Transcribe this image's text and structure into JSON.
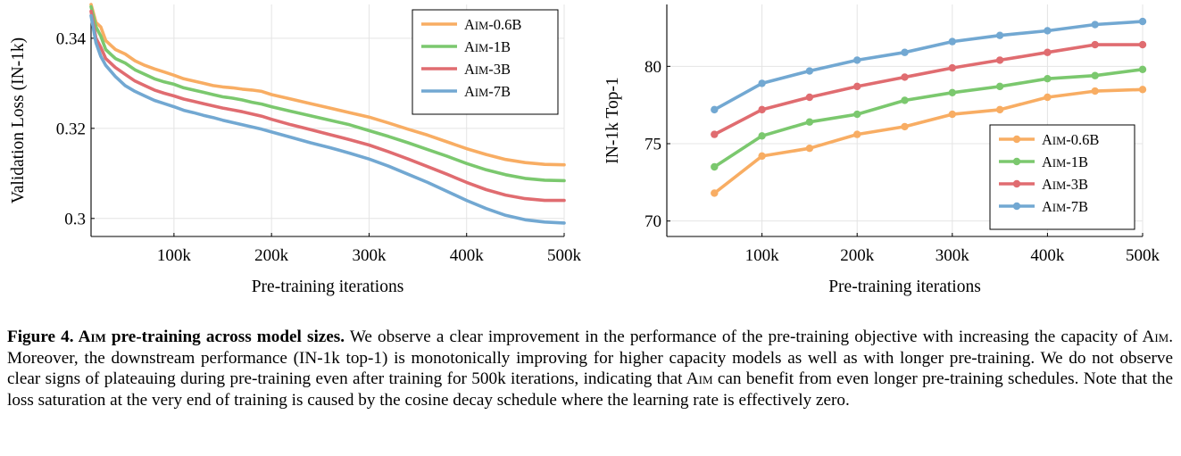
{
  "chart_data": [
    {
      "type": "line",
      "xlabel": "Pre-training iterations",
      "ylabel": "Validation Loss (IN-1k)",
      "xlim": [
        15000,
        500000
      ],
      "ylim": [
        0.296,
        0.3475
      ],
      "x_ticks": [
        {
          "value": 100000,
          "label": "100k"
        },
        {
          "value": 200000,
          "label": "200k"
        },
        {
          "value": 300000,
          "label": "300k"
        },
        {
          "value": 400000,
          "label": "400k"
        },
        {
          "value": 500000,
          "label": "500k"
        }
      ],
      "y_ticks": [
        {
          "value": 0.3,
          "label": "0.3"
        },
        {
          "value": 0.32,
          "label": "0.32"
        },
        {
          "value": 0.34,
          "label": "0.34"
        }
      ],
      "grid": true,
      "legend_position": "top-right",
      "x": [
        15000,
        20000,
        25000,
        30000,
        40000,
        50000,
        60000,
        70000,
        80000,
        90000,
        100000,
        110000,
        120000,
        130000,
        140000,
        150000,
        160000,
        170000,
        180000,
        190000,
        200000,
        220000,
        240000,
        260000,
        280000,
        300000,
        320000,
        340000,
        360000,
        380000,
        400000,
        420000,
        440000,
        460000,
        480000,
        500000
      ],
      "series": [
        {
          "name": "AIM-0.6B",
          "color": "#F8AD63",
          "values": [
            0.3475,
            0.3435,
            0.3425,
            0.3395,
            0.3375,
            0.3365,
            0.335,
            0.334,
            0.3332,
            0.3325,
            0.3318,
            0.331,
            0.3305,
            0.33,
            0.3295,
            0.3292,
            0.329,
            0.3287,
            0.3285,
            0.3282,
            0.3275,
            0.3265,
            0.3255,
            0.3245,
            0.3235,
            0.3225,
            0.3212,
            0.3198,
            0.3185,
            0.317,
            0.3155,
            0.3142,
            0.3131,
            0.3124,
            0.312,
            0.3119
          ]
        },
        {
          "name": "AIM-1B",
          "color": "#7BC86E",
          "values": [
            0.347,
            0.3425,
            0.3405,
            0.3375,
            0.3355,
            0.3345,
            0.333,
            0.332,
            0.331,
            0.3303,
            0.3298,
            0.329,
            0.3285,
            0.328,
            0.3275,
            0.327,
            0.3267,
            0.3263,
            0.3258,
            0.3254,
            0.3248,
            0.3238,
            0.3228,
            0.3218,
            0.3208,
            0.3195,
            0.3182,
            0.3168,
            0.3153,
            0.3138,
            0.3122,
            0.3108,
            0.3097,
            0.3089,
            0.3085,
            0.3084
          ]
        },
        {
          "name": "AIM-3B",
          "color": "#E06C70",
          "values": [
            0.346,
            0.34,
            0.338,
            0.3355,
            0.3335,
            0.332,
            0.3305,
            0.3295,
            0.3285,
            0.3278,
            0.3272,
            0.3265,
            0.326,
            0.3255,
            0.325,
            0.3245,
            0.3241,
            0.3237,
            0.3232,
            0.3227,
            0.322,
            0.3208,
            0.3197,
            0.3186,
            0.3175,
            0.3163,
            0.3148,
            0.3132,
            0.3115,
            0.3098,
            0.308,
            0.3064,
            0.3052,
            0.3044,
            0.304,
            0.304
          ]
        },
        {
          "name": "AIM-7B",
          "color": "#72A8D2",
          "values": [
            0.345,
            0.339,
            0.336,
            0.334,
            0.3315,
            0.3295,
            0.3282,
            0.3272,
            0.3262,
            0.3255,
            0.3248,
            0.324,
            0.3235,
            0.3229,
            0.3224,
            0.3218,
            0.3213,
            0.3208,
            0.3203,
            0.3198,
            0.3192,
            0.318,
            0.3168,
            0.3157,
            0.3145,
            0.3132,
            0.3116,
            0.3098,
            0.308,
            0.306,
            0.304,
            0.3022,
            0.3007,
            0.2997,
            0.2992,
            0.299
          ]
        }
      ]
    },
    {
      "type": "line",
      "xlabel": "Pre-training iterations",
      "ylabel": "IN-1k Top-1",
      "xlim": [
        0,
        500000
      ],
      "ylim": [
        69,
        84
      ],
      "x_ticks": [
        {
          "value": 100000,
          "label": "100k"
        },
        {
          "value": 200000,
          "label": "200k"
        },
        {
          "value": 300000,
          "label": "300k"
        },
        {
          "value": 400000,
          "label": "400k"
        },
        {
          "value": 500000,
          "label": "500k"
        }
      ],
      "y_ticks": [
        {
          "value": 70,
          "label": "70"
        },
        {
          "value": 75,
          "label": "75"
        },
        {
          "value": 80,
          "label": "80"
        }
      ],
      "grid": true,
      "legend_position": "bottom-right",
      "x": [
        50000,
        100000,
        150000,
        200000,
        250000,
        300000,
        350000,
        400000,
        450000,
        500000
      ],
      "series": [
        {
          "name": "AIM-0.6B",
          "color": "#F8AD63",
          "values": [
            71.8,
            74.2,
            74.7,
            75.6,
            76.1,
            76.9,
            77.2,
            78.0,
            78.4,
            78.5
          ]
        },
        {
          "name": "AIM-1B",
          "color": "#7BC86E",
          "values": [
            73.5,
            75.5,
            76.4,
            76.9,
            77.8,
            78.3,
            78.7,
            79.2,
            79.4,
            79.8
          ]
        },
        {
          "name": "AIM-3B",
          "color": "#E06C70",
          "values": [
            75.6,
            77.2,
            78.0,
            78.7,
            79.3,
            79.9,
            80.4,
            80.9,
            81.4,
            81.4
          ]
        },
        {
          "name": "AIM-7B",
          "color": "#72A8D2",
          "values": [
            77.2,
            78.9,
            79.7,
            80.4,
            80.9,
            81.6,
            82.0,
            82.3,
            82.7,
            82.9
          ]
        }
      ]
    }
  ],
  "legend_labels": [
    {
      "prefix": "A",
      "smallcaps": "im",
      "suffix": "-0.6B"
    },
    {
      "prefix": "A",
      "smallcaps": "im",
      "suffix": "-1B"
    },
    {
      "prefix": "A",
      "smallcaps": "im",
      "suffix": "-3B"
    },
    {
      "prefix": "A",
      "smallcaps": "im",
      "suffix": "-7B"
    }
  ],
  "caption": {
    "label": "Figure 4.",
    "title_prefix": "A",
    "title_smallcaps": "im",
    "title_suffix": " pre-training across model sizes.",
    "text_1": " We observe a clear improvement in the performance of the pre-training objective with increasing the capacity of ",
    "text_2": ". Moreover, the downstream performance (IN-1k top-1) is monotonically improving for higher capacity models as well as with longer pre-training. We do not observe clear signs of plateauing during pre-training even after training for 500k iterations, indicating that ",
    "text_3": " can benefit from even longer pre-training schedules. Note that the loss saturation at the very end of training is caused by the cosine decay schedule where the learning rate is effectively zero.",
    "model_prefix": "A",
    "model_smallcaps": "im"
  }
}
